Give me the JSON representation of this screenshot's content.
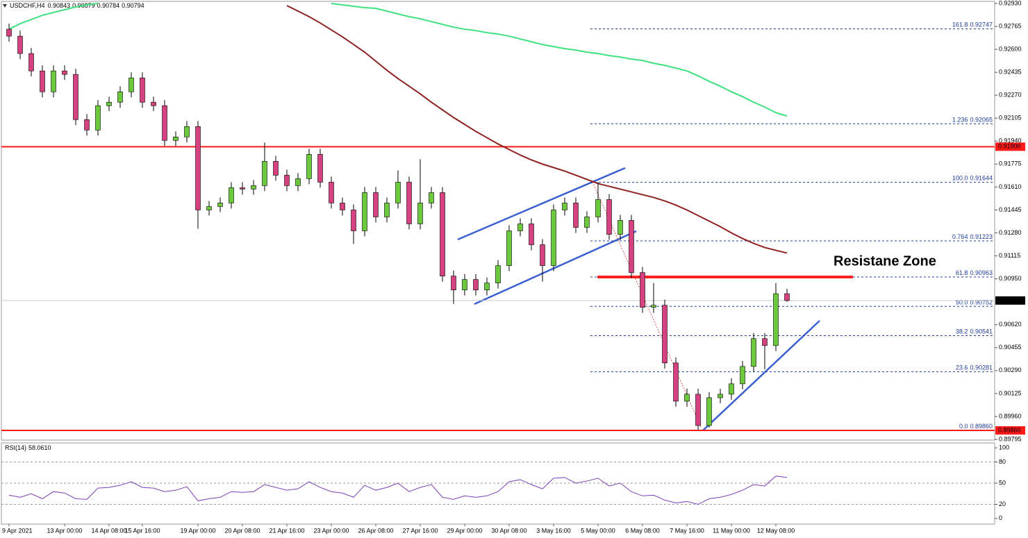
{
  "chart_data": [
    {
      "type": "candlestick",
      "title": "USDCHF,H4",
      "categories": [
        "9 Apr 2021",
        null,
        null,
        null,
        null,
        "13 Apr 00:00",
        null,
        null,
        null,
        "14 Apr 08:00",
        null,
        null,
        "15 Apr 16:00",
        null,
        null,
        null,
        null,
        "19 Apr 00:00",
        null,
        null,
        null,
        "20 Apr 08:00",
        null,
        null,
        null,
        "21 Apr 16:00",
        null,
        null,
        null,
        "23 Apr 00:00",
        null,
        null,
        null,
        "26 Apr 08:00",
        null,
        null,
        null,
        "27 Apr 16:00",
        null,
        null,
        null,
        "29 Apr 00:00",
        null,
        null,
        null,
        "30 Apr 08:00",
        null,
        null,
        null,
        "3 May 16:00",
        null,
        null,
        null,
        "5 May 00:00",
        null,
        null,
        null,
        "6 May 08:00",
        null,
        null,
        null,
        "7 May 16:00",
        null,
        null,
        null,
        "11 May 00:00",
        null,
        null,
        null,
        "12 May 08:00",
        null
      ],
      "open": [
        0.92745,
        0.92695,
        0.9257,
        0.92445,
        0.92295,
        0.92445,
        0.9242,
        0.92095,
        0.9202,
        0.92195,
        0.9222,
        0.92295,
        0.92395,
        0.9222,
        0.92195,
        0.91945,
        0.9197,
        0.92045,
        0.91445,
        0.9147,
        0.91495,
        0.91605,
        0.91595,
        0.9162,
        0.91795,
        0.91695,
        0.9162,
        0.9167,
        0.91845,
        0.91645,
        0.91495,
        0.91445,
        0.91295,
        0.9157,
        0.91395,
        0.91495,
        0.91645,
        0.91345,
        0.91495,
        0.9157,
        0.9097,
        0.9087,
        0.90945,
        0.9087,
        0.9092,
        0.91045,
        0.91295,
        0.91345,
        0.91195,
        0.91045,
        0.91445,
        0.91495,
        0.9132,
        0.91395,
        0.9152,
        0.9127,
        0.9137,
        0.90995,
        0.90745,
        0.9076,
        0.90345,
        0.9007,
        0.9012,
        0.89895,
        0.90095,
        0.9012,
        0.90195,
        0.9032,
        0.9052,
        0.9047,
        0.90843
      ],
      "high": [
        0.92785,
        0.92735,
        0.9261,
        0.92485,
        0.92485,
        0.92485,
        0.9246,
        0.92135,
        0.92235,
        0.9226,
        0.92335,
        0.92435,
        0.92435,
        0.9226,
        0.92235,
        0.9201,
        0.92085,
        0.92085,
        0.9151,
        0.91535,
        0.91645,
        0.91645,
        0.9166,
        0.9193,
        0.91835,
        0.91735,
        0.9171,
        0.91885,
        0.91885,
        0.91685,
        0.91535,
        0.91485,
        0.9161,
        0.9161,
        0.91535,
        0.9173,
        0.91685,
        0.9181,
        0.9161,
        0.9161,
        0.9101,
        0.90985,
        0.90985,
        0.9096,
        0.91085,
        0.91335,
        0.91385,
        0.91385,
        0.91235,
        0.91485,
        0.91535,
        0.91535,
        0.91435,
        0.91644,
        0.9156,
        0.9141,
        0.9141,
        0.91035,
        0.9092,
        0.908,
        0.90385,
        0.9016,
        0.9016,
        0.90135,
        0.9016,
        0.90235,
        0.9036,
        0.9056,
        0.9056,
        0.9092,
        0.90879
      ],
      "low": [
        0.92655,
        0.9253,
        0.92405,
        0.92255,
        0.92255,
        0.9238,
        0.92055,
        0.9198,
        0.9198,
        0.92155,
        0.9218,
        0.92255,
        0.9218,
        0.92155,
        0.91905,
        0.91905,
        0.9193,
        0.9131,
        0.91405,
        0.9143,
        0.91455,
        0.91555,
        0.91555,
        0.9158,
        0.91655,
        0.9158,
        0.9158,
        0.9163,
        0.91605,
        0.91455,
        0.91405,
        0.912,
        0.91255,
        0.91355,
        0.91355,
        0.91455,
        0.91305,
        0.91305,
        0.91455,
        0.9093,
        0.9077,
        0.9083,
        0.9083,
        0.9083,
        0.9088,
        0.91005,
        0.91255,
        0.91155,
        0.9093,
        0.91005,
        0.91405,
        0.9128,
        0.9128,
        0.91355,
        0.9123,
        0.9123,
        0.90955,
        0.90705,
        0.90705,
        0.90305,
        0.9003,
        0.9003,
        0.8986,
        0.8988,
        0.90055,
        0.9008,
        0.90155,
        0.9028,
        0.903,
        0.9043,
        0.90784
      ],
      "close": [
        0.92695,
        0.9257,
        0.92445,
        0.92295,
        0.92445,
        0.9242,
        0.92095,
        0.9202,
        0.92195,
        0.9222,
        0.92295,
        0.92395,
        0.9222,
        0.92195,
        0.91945,
        0.9197,
        0.92045,
        0.91445,
        0.9147,
        0.91495,
        0.91605,
        0.91595,
        0.9162,
        0.91795,
        0.91695,
        0.9162,
        0.9167,
        0.91845,
        0.91645,
        0.91495,
        0.91445,
        0.91295,
        0.9157,
        0.91395,
        0.91495,
        0.91645,
        0.91345,
        0.91495,
        0.9157,
        0.9097,
        0.9087,
        0.90945,
        0.9087,
        0.9092,
        0.91045,
        0.91295,
        0.91345,
        0.91195,
        0.91045,
        0.91445,
        0.91495,
        0.9132,
        0.91395,
        0.9152,
        0.9127,
        0.9137,
        0.90995,
        0.90745,
        0.9076,
        0.90345,
        0.9007,
        0.9012,
        0.89895,
        0.90095,
        0.9012,
        0.90195,
        0.9032,
        0.9052,
        0.9047,
        0.90843,
        0.90794
      ],
      "up_color": "#6cc93b",
      "down_color": "#d6417f",
      "series": [
        {
          "color": "#3ee07f",
          "values": [
            0.92745,
            0.92785,
            0.92815,
            0.92845,
            0.92865,
            0.92885,
            0.92905,
            0.9292,
            0.9293,
            null,
            null,
            null,
            null,
            null,
            null,
            null,
            null,
            null,
            null,
            null,
            null,
            null,
            null,
            null,
            null,
            null,
            null,
            null,
            null,
            0.9293,
            0.9292,
            0.9291,
            0.929,
            0.92895,
            0.92875,
            0.92855,
            0.92835,
            0.9282,
            0.928,
            0.9278,
            0.9276,
            0.92745,
            0.92735,
            0.9272,
            0.9271,
            0.92695,
            0.92675,
            0.92655,
            0.92635,
            0.9262,
            0.92605,
            0.92595,
            0.9258,
            0.9257,
            0.92555,
            0.92545,
            0.9253,
            0.9252,
            0.925,
            0.92485,
            0.92465,
            0.92445,
            0.9241,
            0.9237,
            0.92335,
            0.92295,
            0.9226,
            0.9222,
            0.92185,
            0.92145,
            0.9212
          ]
        },
        {
          "color": "#8e2020",
          "values": [
            null,
            null,
            null,
            null,
            null,
            null,
            null,
            null,
            null,
            null,
            null,
            null,
            null,
            null,
            null,
            null,
            null,
            null,
            null,
            null,
            null,
            null,
            null,
            null,
            null,
            0.92915,
            0.92875,
            0.92835,
            0.9279,
            0.9274,
            0.9269,
            0.92635,
            0.9258,
            0.92515,
            0.9245,
            0.9239,
            0.92335,
            0.9228,
            0.9222,
            0.92165,
            0.9211,
            0.9206,
            0.9201,
            0.91965,
            0.9192,
            0.9188,
            0.9184,
            0.91805,
            0.91775,
            0.9175,
            0.91725,
            0.91695,
            0.91665,
            0.91635,
            0.91615,
            0.91595,
            0.91575,
            0.91555,
            0.91535,
            0.9151,
            0.9148,
            0.91445,
            0.91405,
            0.91365,
            0.91325,
            0.9128,
            0.9124,
            0.91205,
            0.91175,
            0.91155,
            0.91135
          ]
        }
      ],
      "ylim": [
        0.8979,
        0.92945
      ],
      "yticks": [
        {
          "value": 0.9293,
          "label": "0.92930"
        },
        0.92765,
        {
          "value": 0.926,
          "label": "0.92600"
        },
        0.92435,
        {
          "value": 0.9227,
          "label": "0.92270"
        },
        0.92105,
        {
          "value": 0.9194,
          "label": "0.91940"
        },
        0.91775,
        {
          "value": 0.9161,
          "label": "0.91610"
        },
        0.91445,
        {
          "value": 0.9128,
          "label": "0.91280"
        },
        0.91115,
        {
          "value": 0.9095,
          "label": "0.90950"
        },
        {
          "value": 0.9062,
          "label": "0.90620"
        },
        0.90455,
        {
          "value": 0.9029,
          "label": "0.90290"
        },
        0.90125,
        {
          "value": 0.8996,
          "label": "0.89960"
        },
        0.89795
      ],
      "hlines": [
        {
          "value": 0.919,
          "label": "0.91900",
          "color": "#ff1a1a"
        },
        {
          "value": 0.8986,
          "label": "0.89860",
          "color": "#ff1a1a"
        }
      ],
      "fib_color": "#1f3b9a",
      "fib_levels": [
        {
          "level": "161.8",
          "value": 0.92747,
          "label": "0.92747"
        },
        {
          "level": "1.236",
          "value": 0.92065,
          "label": "0.92065"
        },
        {
          "level": "100.0",
          "value": 0.91644,
          "label": "0.91644"
        },
        {
          "level": "0.764",
          "value": 0.91223,
          "label": "0.91223"
        },
        {
          "level": "61.8",
          "value": 0.90963,
          "label": "0.90963"
        },
        {
          "level": "50.0",
          "value": 0.90752,
          "label": "0.90752"
        },
        {
          "level": "38.2",
          "value": 0.90541,
          "label": "0.90541"
        },
        {
          "level": "23.6",
          "value": 0.90281,
          "label": "0.90281"
        },
        {
          "level": "0.0",
          "value": 0.8986,
          "label": "0.89860"
        }
      ],
      "resistance": {
        "text": "Resistane Zone",
        "value": 0.90963,
        "color": "#ff2020"
      }
    },
    {
      "type": "line",
      "title": "RSI(14)",
      "current_label": "58.0610",
      "color": "#7b3fb8",
      "values": [
        33,
        30,
        35,
        28,
        38,
        36,
        28,
        27,
        43,
        44,
        47,
        52,
        44,
        43,
        38,
        40,
        45,
        25,
        28,
        30,
        38,
        37,
        38,
        48,
        44,
        40,
        42,
        52,
        44,
        38,
        36,
        30,
        47,
        40,
        44,
        50,
        38,
        44,
        48,
        30,
        27,
        32,
        30,
        32,
        38,
        52,
        55,
        48,
        42,
        57,
        58,
        50,
        53,
        57,
        46,
        50,
        38,
        32,
        33,
        26,
        22,
        24,
        20,
        28,
        30,
        34,
        40,
        48,
        46,
        60,
        58.061
      ],
      "ylim": [
        -8,
        107
      ],
      "yticks": [
        100,
        80,
        50,
        20,
        0
      ],
      "levels": [
        80,
        50,
        20
      ]
    }
  ]
}
